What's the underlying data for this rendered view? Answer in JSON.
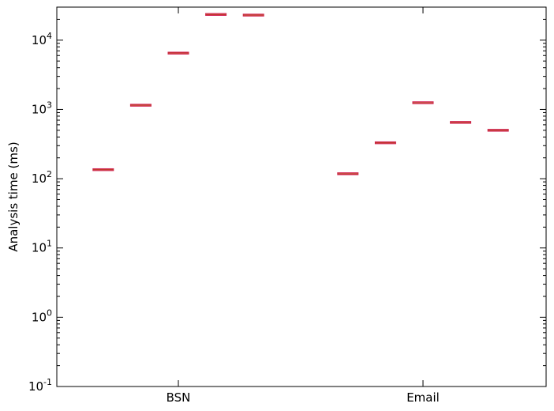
{
  "chart_data": {
    "type": "box",
    "title": "",
    "xlabel": "",
    "ylabel": "Analysis time (ms)",
    "yscale": "log",
    "ylim": [
      0.1,
      30000
    ],
    "grid": false,
    "y_ticks": [
      {
        "base": "10",
        "exp": "-1",
        "value": 0.1
      },
      {
        "base": "10",
        "exp": "0",
        "value": 1
      },
      {
        "base": "10",
        "exp": "1",
        "value": 10
      },
      {
        "base": "10",
        "exp": "2",
        "value": 100
      },
      {
        "base": "10",
        "exp": "3",
        "value": 1000
      },
      {
        "base": "10",
        "exp": "4",
        "value": 10000
      }
    ],
    "groups": [
      {
        "label": "BSN",
        "values": [
          135,
          1150,
          6500,
          23500,
          23000
        ]
      },
      {
        "label": "Email",
        "values": [
          118,
          330,
          1250,
          650,
          500
        ]
      }
    ],
    "colors": {
      "box_edge": "#d11a4f",
      "median": "#c0392b"
    }
  }
}
